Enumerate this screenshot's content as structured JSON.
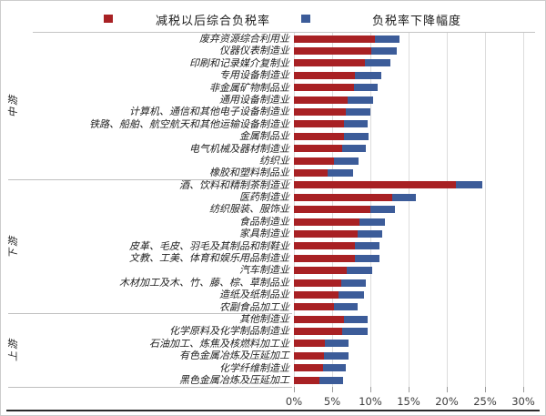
{
  "legend": {
    "items": [
      {
        "label": "减税以后综合负税率",
        "color": "#A82124"
      },
      {
        "label": "负税率下降幅度",
        "color": "#3C5C99"
      }
    ]
  },
  "chart_data": {
    "type": "bar",
    "orientation": "horizontal",
    "stacked": true,
    "title": "",
    "x_axis": {
      "min": 0,
      "max": 30,
      "unit": "%",
      "ticks": [
        "0%",
        "5%",
        "10%",
        "15%",
        "20%",
        "25%",
        "30%"
      ],
      "grid": true
    },
    "series": [
      {
        "name": "减税以后综合负税率",
        "key": "after_tax",
        "color": "#A82124"
      },
      {
        "name": "负税率下降幅度",
        "key": "decline",
        "color": "#3C5C99"
      }
    ],
    "groups": [
      {
        "name": "中游",
        "industries": [
          {
            "label": "废弃资源综合利用业",
            "after_tax": 10.6,
            "decline": 3.2
          },
          {
            "label": "仪器仪表制造业",
            "after_tax": 10.1,
            "decline": 3.4
          },
          {
            "label": "印刷和记录媒介复制业",
            "after_tax": 9.3,
            "decline": 3.3
          },
          {
            "label": "专用设备制造业",
            "after_tax": 8.0,
            "decline": 3.4
          },
          {
            "label": "非金属矿物制品业",
            "after_tax": 7.9,
            "decline": 3.1
          },
          {
            "label": "通用设备制造业",
            "after_tax": 7.0,
            "decline": 3.3
          },
          {
            "label": "计算机、通信和其他电子设备制造业",
            "after_tax": 6.8,
            "decline": 3.2
          },
          {
            "label": "铁路、船舶、航空航天和其他运输设备制造业",
            "after_tax": 6.5,
            "decline": 3.1
          },
          {
            "label": "金属制品业",
            "after_tax": 6.5,
            "decline": 3.3
          },
          {
            "label": "电气机械及器材制造业",
            "after_tax": 6.3,
            "decline": 3.1
          },
          {
            "label": "纺织业",
            "after_tax": 5.2,
            "decline": 3.2
          },
          {
            "label": "橡胶和塑料制品业",
            "after_tax": 4.4,
            "decline": 3.3
          }
        ]
      },
      {
        "name": "下游",
        "industries": [
          {
            "label": "酒、饮料和精制茶制造业",
            "after_tax": 21.2,
            "decline": 3.4
          },
          {
            "label": "医药制造业",
            "after_tax": 12.8,
            "decline": 3.2
          },
          {
            "label": "纺织服装、服饰业",
            "after_tax": 10.0,
            "decline": 3.2
          },
          {
            "label": "食品制造业",
            "after_tax": 8.6,
            "decline": 3.3
          },
          {
            "label": "家具制造业",
            "after_tax": 8.3,
            "decline": 3.3
          },
          {
            "label": "皮革、毛皮、羽毛及其制品和制鞋业",
            "after_tax": 8.0,
            "decline": 3.2
          },
          {
            "label": "文教、工美、体育和娱乐用品制造业",
            "after_tax": 8.0,
            "decline": 3.2
          },
          {
            "label": "汽车制造业",
            "after_tax": 6.9,
            "decline": 3.3
          },
          {
            "label": "木材加工及木、竹、藤、棕、草制品业",
            "after_tax": 6.2,
            "decline": 3.2
          },
          {
            "label": "造纸及纸制品业",
            "after_tax": 5.8,
            "decline": 3.4
          },
          {
            "label": "农副食品加工业",
            "after_tax": 5.2,
            "decline": 3.1
          }
        ]
      },
      {
        "name": "上游",
        "industries": [
          {
            "label": "其他制造业",
            "after_tax": 6.6,
            "decline": 3.1
          },
          {
            "label": "化学原料及化学制品制造业",
            "after_tax": 6.3,
            "decline": 3.3
          },
          {
            "label": "石油加工、炼焦及核燃料加工业",
            "after_tax": 4.0,
            "decline": 3.2
          },
          {
            "label": "有色金属冶炼及压延加工",
            "after_tax": 3.9,
            "decline": 3.3
          },
          {
            "label": "化学纤维制造业",
            "after_tax": 3.8,
            "decline": 3.0
          },
          {
            "label": "黑色金属冶炼及压延加工",
            "after_tax": 3.3,
            "decline": 3.1
          }
        ]
      }
    ]
  }
}
